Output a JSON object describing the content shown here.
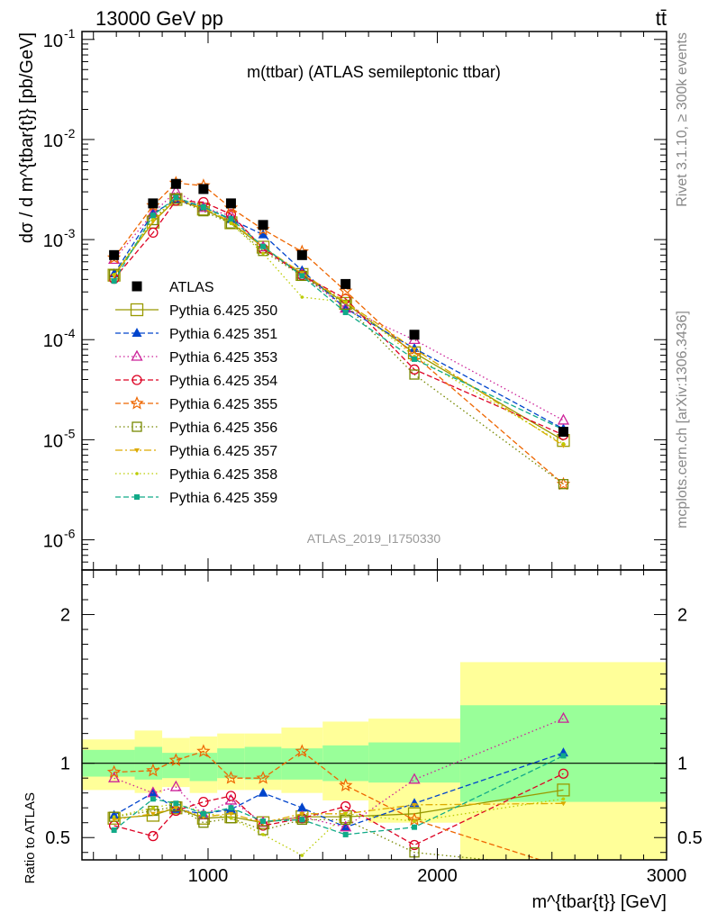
{
  "header": {
    "left": "13000 GeV pp",
    "right": "tt̄"
  },
  "side_labels": {
    "top": "Rivet 3.1.10, ≥ 300k events",
    "bottom": "mcplots.cern.ch [arXiv:1306.3436]"
  },
  "chart_data": {
    "type": "line",
    "title": "m(ttbar) (ATLAS semileptonic ttbar)",
    "watermark": "ATLAS_2019_I1750330",
    "xlabel": "m^{tbar{t}} [GeV]",
    "ylabel": "dσ / d m^{tbar{t}} [pb/GeV]",
    "ratio_ylabel": "Ratio to ATLAS",
    "xlim": [
      450,
      3000
    ],
    "ylim": [
      5e-07,
      0.12
    ],
    "yscale": "log",
    "ratio_ylim": [
      0.35,
      2.3
    ],
    "x_ticks": [
      1000,
      2000,
      3000
    ],
    "x_tick_labels": [
      "1000",
      "2000",
      "3000"
    ],
    "y_ticks": [
      1e-06,
      1e-05,
      0.0001,
      0.001,
      0.01,
      0.1
    ],
    "y_tick_labels": [
      "10^{-6}",
      "10^{-5}",
      "10^{-4}",
      "10^{-3}",
      "10^{-2}",
      "10^{-1}"
    ],
    "ratio_ticks": [
      0.5,
      1,
      2
    ],
    "ratio_tick_labels": [
      "0.5",
      "1",
      "2"
    ],
    "legend_position": "middle-left",
    "bins": [
      [
        450,
        680
      ],
      [
        680,
        800
      ],
      [
        800,
        920
      ],
      [
        920,
        1040
      ],
      [
        1040,
        1160
      ],
      [
        1160,
        1320
      ],
      [
        1320,
        1500
      ],
      [
        1500,
        1700
      ],
      [
        1700,
        2100
      ],
      [
        2100,
        3000
      ]
    ],
    "x": [
      590,
      760,
      860,
      980,
      1100,
      1240,
      1410,
      1600,
      1900,
      2550
    ],
    "band_inner": [
      [
        0.91,
        1.09
      ],
      [
        0.89,
        1.11
      ],
      [
        0.9,
        1.07
      ],
      [
        0.88,
        1.07
      ],
      [
        0.9,
        1.1
      ],
      [
        0.89,
        1.11
      ],
      [
        0.89,
        1.1
      ],
      [
        0.88,
        1.12
      ],
      [
        0.87,
        1.14
      ],
      [
        0.74,
        1.39
      ]
    ],
    "band_outer": [
      [
        0.82,
        1.16
      ],
      [
        0.8,
        1.22
      ],
      [
        0.84,
        1.17
      ],
      [
        0.8,
        1.18
      ],
      [
        0.82,
        1.2
      ],
      [
        0.82,
        1.2
      ],
      [
        0.8,
        1.24
      ],
      [
        0.75,
        1.28
      ],
      [
        0.6,
        1.3
      ],
      [
        0.2,
        1.68
      ]
    ],
    "data": {
      "name": "ATLAS",
      "values": [
        0.0007,
        0.0023,
        0.0036,
        0.0032,
        0.0023,
        0.0014,
        0.0007,
        0.00036,
        0.000112,
        1.2e-05
      ]
    },
    "series": [
      {
        "name": "Pythia 6.425 350",
        "color": "#999900",
        "marker": "open-square-large",
        "dash": "",
        "ratio": [
          0.63,
          0.65,
          0.7,
          0.63,
          0.64,
          0.6,
          0.64,
          0.64,
          0.66,
          0.82
        ]
      },
      {
        "name": "Pythia 6.425 351",
        "color": "#0044cc",
        "marker": "filled-triangle",
        "dash": "6,3",
        "ratio": [
          0.65,
          0.8,
          0.69,
          0.66,
          0.69,
          0.8,
          0.7,
          0.57,
          0.73,
          1.07
        ]
      },
      {
        "name": "Pythia 6.425 353",
        "color": "#cc2299",
        "marker": "open-triangle",
        "dash": "1.5,3",
        "ratio": [
          0.9,
          0.8,
          0.84,
          0.65,
          0.75,
          0.6,
          0.64,
          0.57,
          0.89,
          1.3
        ]
      },
      {
        "name": "Pythia 6.425 354",
        "color": "#dd0022",
        "marker": "open-circle",
        "dash": "6,3",
        "ratio": [
          0.58,
          0.51,
          0.68,
          0.74,
          0.78,
          0.58,
          0.63,
          0.71,
          0.45,
          0.93
        ]
      },
      {
        "name": "Pythia 6.425 355",
        "color": "#ee6600",
        "marker": "open-star",
        "dash": "6,3",
        "ratio": [
          0.94,
          0.95,
          1.02,
          1.08,
          0.9,
          0.9,
          1.08,
          0.85,
          0.62,
          0.3
        ]
      },
      {
        "name": "Pythia 6.425 356",
        "color": "#778800",
        "marker": "open-square",
        "dash": "1.5,3",
        "ratio": [
          0.64,
          0.68,
          0.71,
          0.6,
          0.63,
          0.55,
          0.62,
          0.62,
          0.4,
          0.3
        ]
      },
      {
        "name": "Pythia 6.425 357",
        "color": "#ddaa00",
        "marker": "tri-down",
        "dash": "8,3,2,3",
        "ratio": [
          0.62,
          0.66,
          0.7,
          0.64,
          0.66,
          0.6,
          0.66,
          0.66,
          0.72,
          0.73
        ]
      },
      {
        "name": "Pythia 6.425 358",
        "color": "#bbcc00",
        "marker": "dot",
        "dash": "1.5,3",
        "ratio": [
          0.64,
          0.7,
          0.73,
          0.67,
          0.63,
          0.52,
          0.38,
          0.66,
          0.61,
          0.76
        ]
      },
      {
        "name": "Pythia 6.425 359",
        "color": "#11aa88",
        "marker": "filled-square",
        "dash": "6,3",
        "ratio": [
          0.55,
          0.76,
          0.73,
          0.66,
          0.7,
          0.61,
          0.62,
          0.52,
          0.57,
          1.05
        ]
      }
    ]
  }
}
